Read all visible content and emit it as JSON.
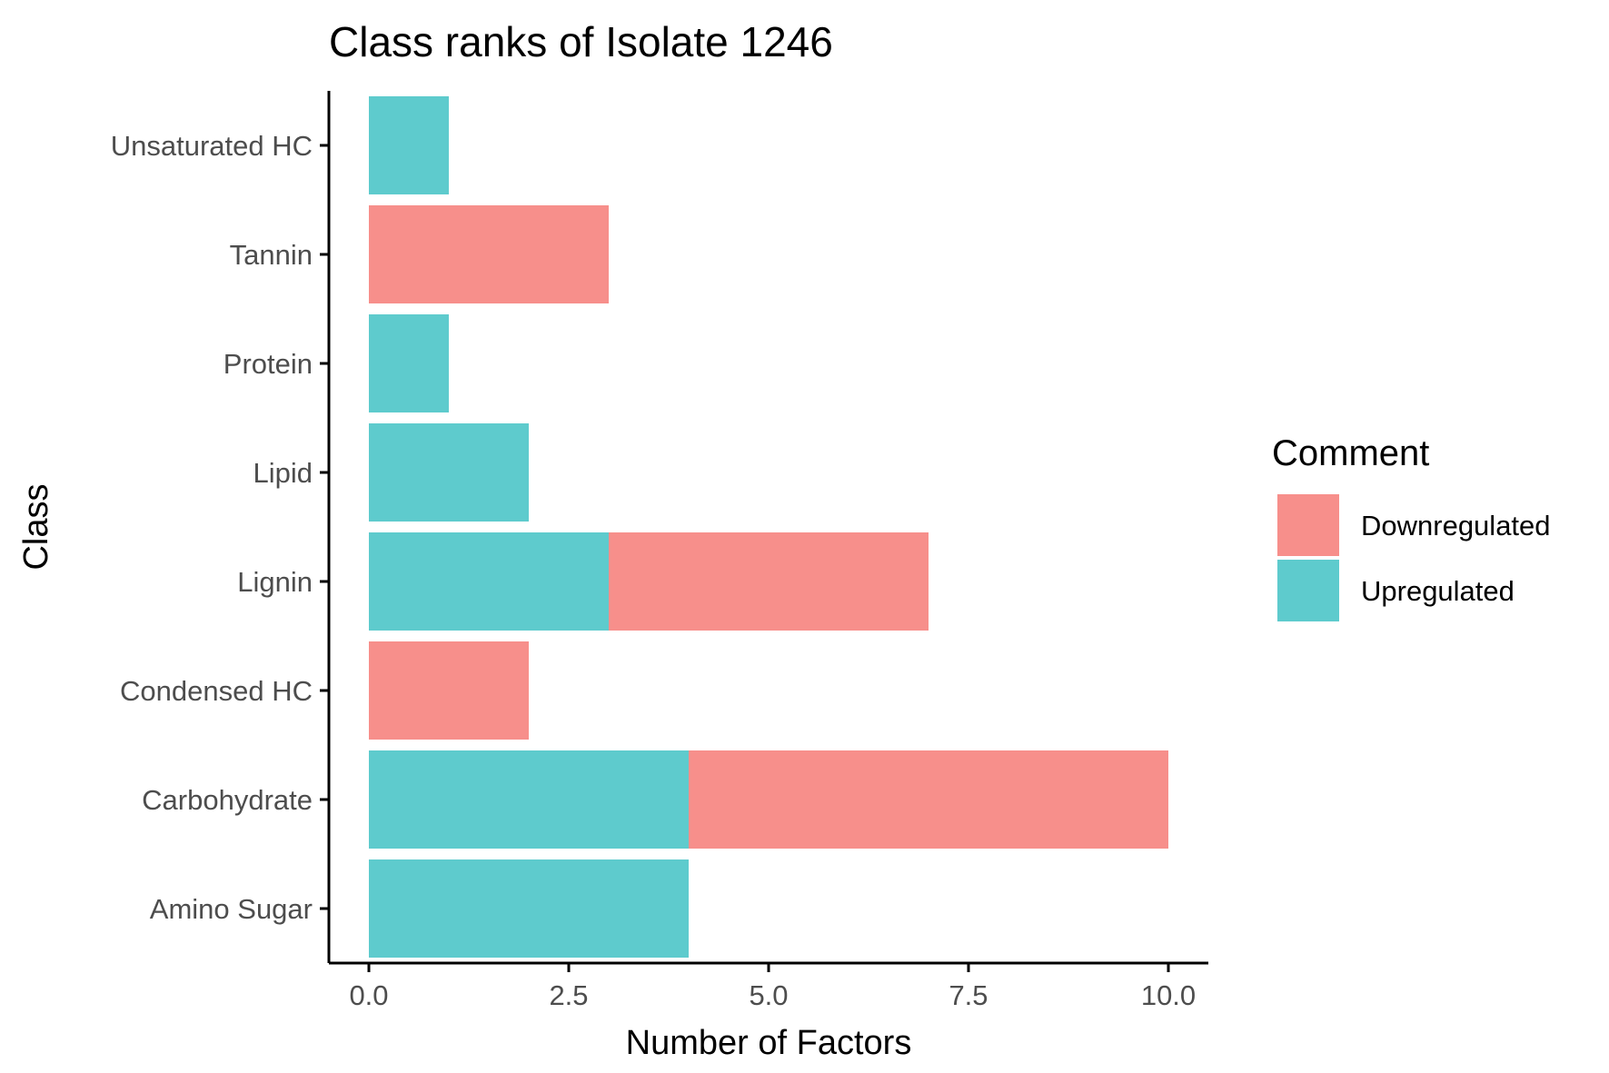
{
  "chart_data": {
    "type": "bar",
    "orientation": "horizontal",
    "stacked": true,
    "title": "Class ranks of Isolate 1246",
    "xlabel": "Number of Factors",
    "ylabel": "Class",
    "xlim": [
      -0.5,
      10.5
    ],
    "x_ticks": [
      0,
      2.5,
      5,
      7.5,
      10
    ],
    "x_tick_labels": [
      "0.0",
      "2.5",
      "5.0",
      "7.5",
      "10.0"
    ],
    "categories": [
      "Amino Sugar",
      "Carbohydrate",
      "Condensed HC",
      "Lignin",
      "Lipid",
      "Protein",
      "Tannin",
      "Unsaturated HC"
    ],
    "series": [
      {
        "name": "Upregulated",
        "color": "#5ecbcd",
        "values": [
          4,
          4,
          0,
          3,
          2,
          1,
          0,
          1
        ]
      },
      {
        "name": "Downregulated",
        "color": "#f78f8b",
        "values": [
          0,
          6,
          2,
          4,
          0,
          0,
          3,
          0
        ]
      }
    ],
    "legend": {
      "title": "Comment",
      "placement": "right",
      "entries": [
        {
          "label": "Downregulated",
          "color": "#f78f8b"
        },
        {
          "label": "Upregulated",
          "color": "#5ecbcd"
        }
      ]
    },
    "grid": false
  }
}
